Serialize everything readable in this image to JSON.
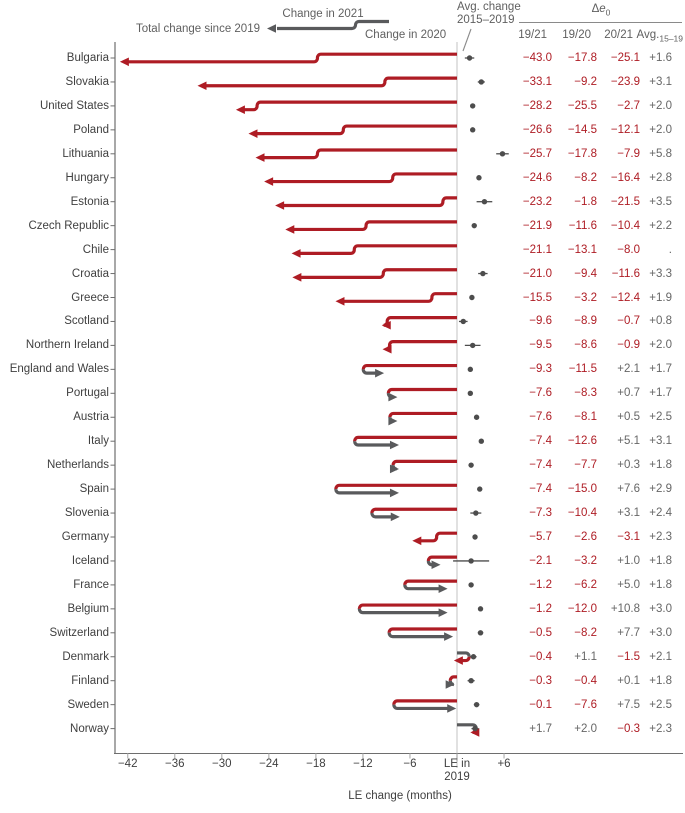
{
  "legend": {
    "total": "Total change since 2019",
    "change_2021": "Change in 2021",
    "change_2020": "Change in 2020"
  },
  "right_panel": {
    "avg_line1": "Avg. change",
    "avg_line2": "2015–2019",
    "delta_prefix": "Δ",
    "delta_var": "e",
    "delta_sub": "0",
    "columns": [
      "19/21",
      "19/20",
      "20/21"
    ],
    "avg_col_main": "Avg.",
    "avg_col_sub": "15–19",
    "missing_value": "."
  },
  "axis": {
    "title": "LE change (months)",
    "zero_label_line1": "LE in",
    "zero_label_line2": "2019",
    "ticks": [
      {
        "value": -42,
        "label": "−42"
      },
      {
        "value": -36,
        "label": "−36"
      },
      {
        "value": -30,
        "label": "−30"
      },
      {
        "value": -24,
        "label": "−24"
      },
      {
        "value": -18,
        "label": "−18"
      },
      {
        "value": -12,
        "label": "−12"
      },
      {
        "value": -6,
        "label": "−6"
      },
      {
        "value": 0,
        "label": ""
      },
      {
        "value": 6,
        "label": "+6"
      }
    ]
  },
  "colors": {
    "negative_red": "#ae1c24",
    "positive_grey": "#595a5c",
    "dot_grey": "#4d4d4d",
    "axis_grey": "#6e6e6e",
    "light_line": "#d4d4d4",
    "tick_mark": "#b4b4b4",
    "rule_grey": "#8a8a8a"
  },
  "chart_data": {
    "type": "table",
    "title": "Life expectancy changes since 2019 with step-arrow trajectories",
    "xlabel": "LE change (months)",
    "x_axis_range": [
      -45,
      9
    ],
    "legend_position": "top",
    "grid": false,
    "value_columns": [
      "19/21",
      "19/20",
      "20/21",
      "Avg.15–19"
    ],
    "rows": [
      {
        "name": "Bulgaria",
        "le_19_21": -43.0,
        "le_19_20": -17.8,
        "le_20_21": -25.1,
        "avg_15_19": 1.6,
        "ci": 0.6
      },
      {
        "name": "Slovakia",
        "le_19_21": -33.1,
        "le_19_20": -9.2,
        "le_20_21": -23.9,
        "avg_15_19": 3.1,
        "ci": 0.45
      },
      {
        "name": "United States",
        "le_19_21": -28.2,
        "le_19_20": -25.5,
        "le_20_21": -2.7,
        "avg_15_19": 2.0,
        "ci": 0.15
      },
      {
        "name": "Poland",
        "le_19_21": -26.6,
        "le_19_20": -14.5,
        "le_20_21": -12.1,
        "avg_15_19": 2.0,
        "ci": 0.2
      },
      {
        "name": "Lithuania",
        "le_19_21": -25.7,
        "le_19_20": -17.8,
        "le_20_21": -7.9,
        "avg_15_19": 5.8,
        "ci": 0.8
      },
      {
        "name": "Hungary",
        "le_19_21": -24.6,
        "le_19_20": -8.2,
        "le_20_21": -16.4,
        "avg_15_19": 2.8,
        "ci": 0.3
      },
      {
        "name": "Estonia",
        "le_19_21": -23.2,
        "le_19_20": -1.8,
        "le_20_21": -21.5,
        "avg_15_19": 3.5,
        "ci": 1.0
      },
      {
        "name": "Czech Republic",
        "le_19_21": -21.9,
        "le_19_20": -11.6,
        "le_20_21": -10.4,
        "avg_15_19": 2.2,
        "ci": 0.25
      },
      {
        "name": "Chile",
        "le_19_21": -21.1,
        "le_19_20": -13.1,
        "le_20_21": -8.0,
        "avg_15_19": null,
        "ci": null
      },
      {
        "name": "Croatia",
        "le_19_21": -21.0,
        "le_19_20": -9.4,
        "le_20_21": -11.6,
        "avg_15_19": 3.3,
        "ci": 0.6
      },
      {
        "name": "Greece",
        "le_19_21": -15.5,
        "le_19_20": -3.2,
        "le_20_21": -12.4,
        "avg_15_19": 1.9,
        "ci": 0.3
      },
      {
        "name": "Scotland",
        "le_19_21": -9.6,
        "le_19_20": -8.9,
        "le_20_21": -0.7,
        "avg_15_19": 0.8,
        "ci": 0.55
      },
      {
        "name": "Northern Ireland",
        "le_19_21": -9.5,
        "le_19_20": -8.6,
        "le_20_21": -0.9,
        "avg_15_19": 2.0,
        "ci": 1.0
      },
      {
        "name": "England and Wales",
        "le_19_21": -9.3,
        "le_19_20": -11.5,
        "le_20_21": 2.1,
        "avg_15_19": 1.7,
        "ci": 0.2
      },
      {
        "name": "Portugal",
        "le_19_21": -7.6,
        "le_19_20": -8.3,
        "le_20_21": 0.7,
        "avg_15_19": 1.7,
        "ci": 0.25
      },
      {
        "name": "Austria",
        "le_19_21": -7.6,
        "le_19_20": -8.1,
        "le_20_21": 0.5,
        "avg_15_19": 2.5,
        "ci": 0.3
      },
      {
        "name": "Italy",
        "le_19_21": -7.4,
        "le_19_20": -12.6,
        "le_20_21": 5.1,
        "avg_15_19": 3.1,
        "ci": 0.2
      },
      {
        "name": "Netherlands",
        "le_19_21": -7.4,
        "le_19_20": -7.7,
        "le_20_21": 0.3,
        "avg_15_19": 1.8,
        "ci": 0.25
      },
      {
        "name": "Spain",
        "le_19_21": -7.4,
        "le_19_20": -15.0,
        "le_20_21": 7.6,
        "avg_15_19": 2.9,
        "ci": 0.2
      },
      {
        "name": "Slovenia",
        "le_19_21": -7.3,
        "le_19_20": -10.4,
        "le_20_21": 3.1,
        "avg_15_19": 2.4,
        "ci": 0.7
      },
      {
        "name": "Germany",
        "le_19_21": -5.7,
        "le_19_20": -2.6,
        "le_20_21": -3.1,
        "avg_15_19": 2.3,
        "ci": 0.15
      },
      {
        "name": "Iceland",
        "le_19_21": -2.1,
        "le_19_20": -3.2,
        "le_20_21": 1.0,
        "avg_15_19": 1.8,
        "ci": 2.3
      },
      {
        "name": "France",
        "le_19_21": -1.2,
        "le_19_20": -6.2,
        "le_20_21": 5.0,
        "avg_15_19": 1.8,
        "ci": 0.15
      },
      {
        "name": "Belgium",
        "le_19_21": -1.2,
        "le_19_20": -12.0,
        "le_20_21": 10.8,
        "avg_15_19": 3.0,
        "ci": 0.3
      },
      {
        "name": "Switzerland",
        "le_19_21": -0.5,
        "le_19_20": -8.2,
        "le_20_21": 7.7,
        "avg_15_19": 3.0,
        "ci": 0.35
      },
      {
        "name": "Denmark",
        "le_19_21": -0.4,
        "le_19_20": 1.1,
        "le_20_21": -1.5,
        "avg_15_19": 2.1,
        "ci": 0.4
      },
      {
        "name": "Finland",
        "le_19_21": -0.3,
        "le_19_20": -0.4,
        "le_20_21": 0.1,
        "avg_15_19": 1.8,
        "ci": 0.45
      },
      {
        "name": "Sweden",
        "le_19_21": -0.1,
        "le_19_20": -7.6,
        "le_20_21": 7.5,
        "avg_15_19": 2.5,
        "ci": 0.35
      },
      {
        "name": "Norway",
        "le_19_21": 1.7,
        "le_19_20": 2.0,
        "le_20_21": -0.3,
        "avg_15_19": 2.3,
        "ci": 0.45
      }
    ]
  }
}
